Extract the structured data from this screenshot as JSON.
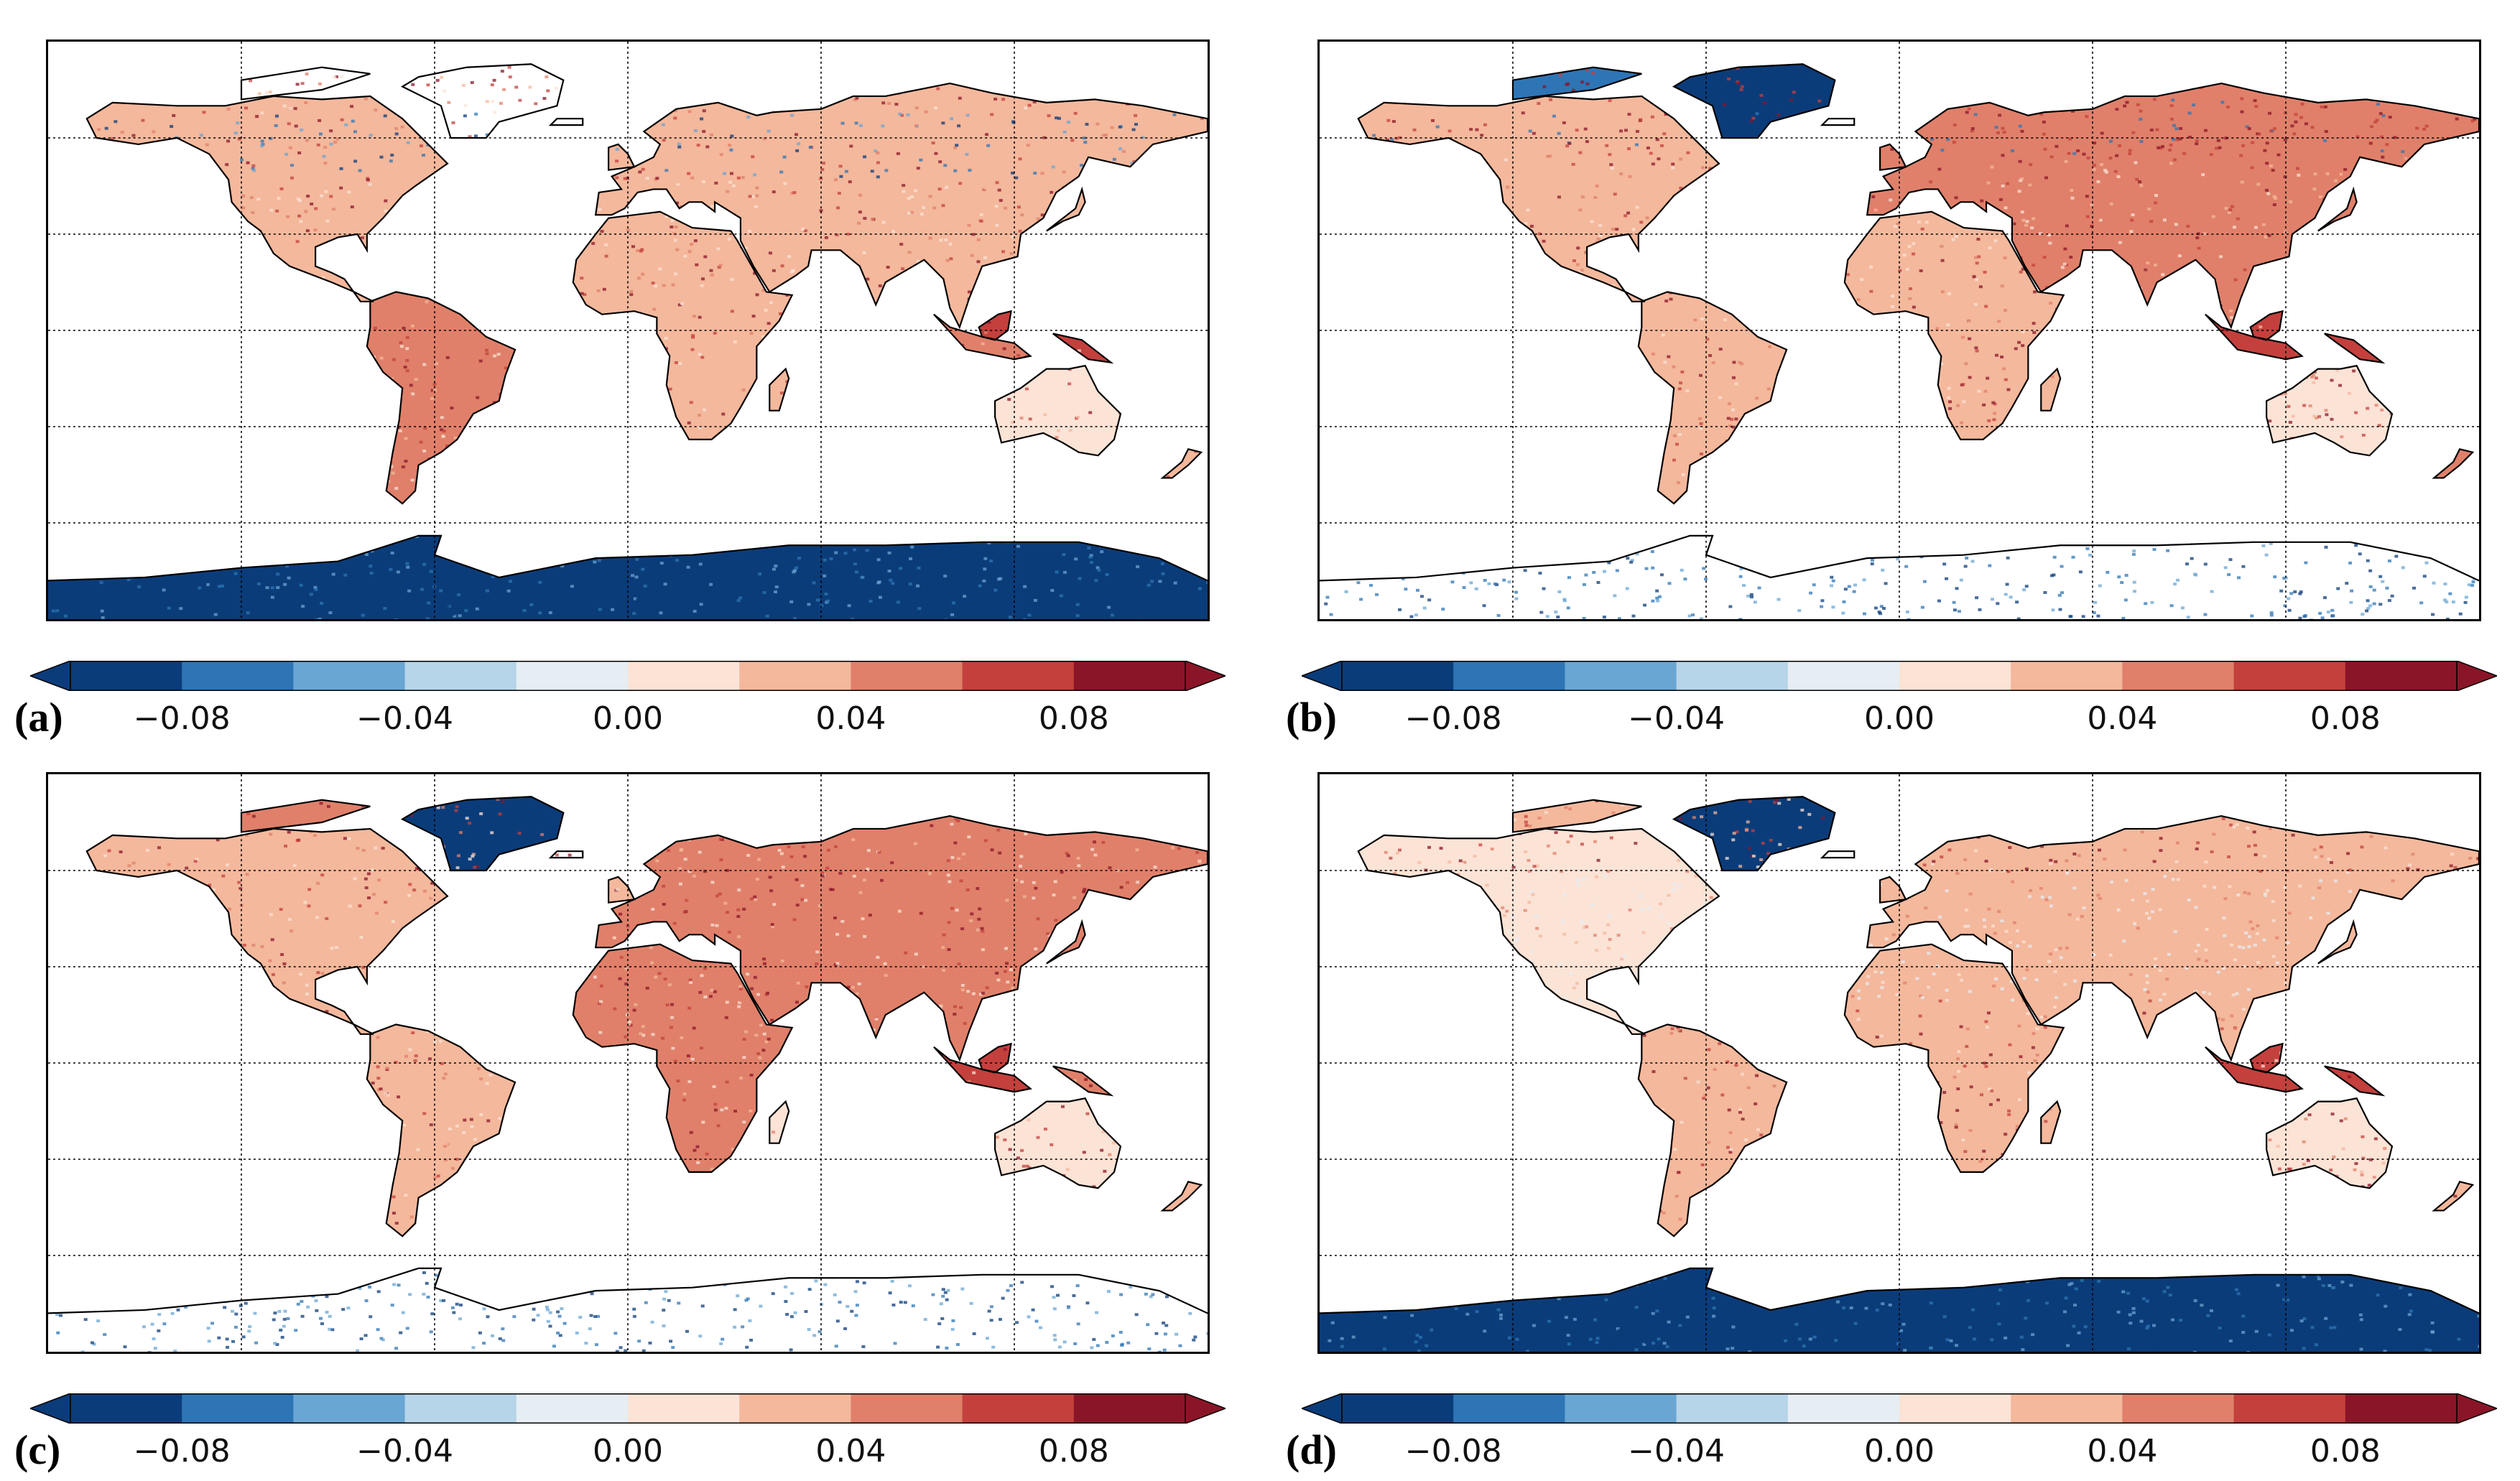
{
  "figure": {
    "colormap": [
      "#0b3c7a",
      "#2e75b6",
      "#6aa6d3",
      "#b6d5e8",
      "#e6eef4",
      "#fbe3d6",
      "#f4b89c",
      "#e0806a",
      "#c3403d",
      "#8b1528"
    ],
    "colorbar_ticks": [
      {
        "label": "−0.08",
        "value": -0.08
      },
      {
        "label": "−0.04",
        "value": -0.04
      },
      {
        "label": "0.00",
        "value": 0.0
      },
      {
        "label": "0.04",
        "value": 0.04
      },
      {
        "label": "0.08",
        "value": 0.08
      }
    ],
    "colorbar_range": [
      -0.1,
      0.1
    ],
    "panels": [
      {
        "id": "a",
        "label": "(a)",
        "antarctica": "strong-negative",
        "north_highlatitude": "mixed",
        "greenland": "none",
        "africa": "moderate-positive"
      },
      {
        "id": "b",
        "label": "(b)",
        "antarctica": "partial-negative",
        "north_highlatitude": "strong-positive",
        "greenland": "negative",
        "africa": "moderate-positive"
      },
      {
        "id": "c",
        "label": "(c)",
        "antarctica": "none",
        "north_highlatitude": "positive",
        "greenland": "negative",
        "africa": "strong-positive"
      },
      {
        "id": "d",
        "label": "(d)",
        "antarctica": "strong-negative",
        "north_highlatitude": "weak-positive",
        "greenland": "negative",
        "africa": "moderate-positive"
      }
    ]
  }
}
